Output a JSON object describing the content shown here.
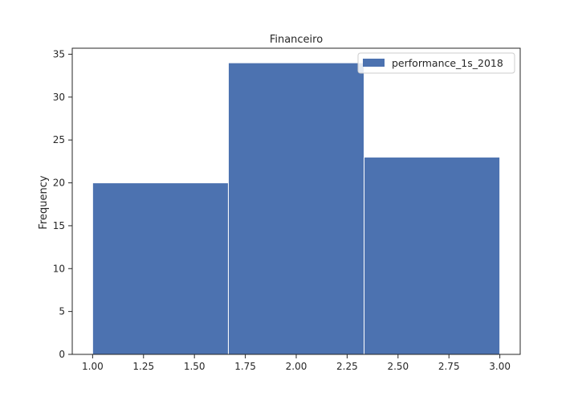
{
  "chart_data": {
    "type": "bar",
    "title": "Financeiro",
    "xlabel": "",
    "ylabel": "Frequency",
    "xlim": [
      0.9,
      3.1
    ],
    "ylim": [
      0,
      35.7
    ],
    "xticks": [
      "1.00",
      "1.25",
      "1.50",
      "1.75",
      "2.00",
      "2.25",
      "2.50",
      "2.75",
      "3.00"
    ],
    "yticks": [
      "0",
      "5",
      "10",
      "15",
      "20",
      "25",
      "30",
      "35"
    ],
    "grid": false,
    "legend_position": "top-right",
    "series": [
      {
        "name": "performance_1s_2018",
        "color": "#4c72b0",
        "bins": [
          {
            "start": 1.0,
            "end": 1.6667,
            "value": 20
          },
          {
            "start": 1.6667,
            "end": 2.3333,
            "value": 34
          },
          {
            "start": 2.3333,
            "end": 3.0,
            "value": 23
          }
        ]
      }
    ]
  }
}
